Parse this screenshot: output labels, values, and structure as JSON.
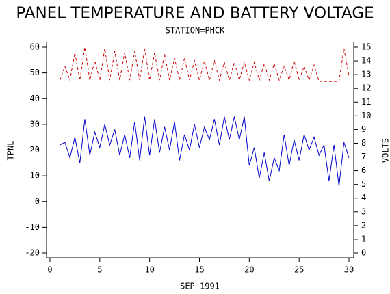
{
  "chart_data": {
    "type": "line",
    "title": "PANEL TEMPERATURE AND BATTERY VOLTAGE",
    "subtitle": "STATION=PHCK",
    "x_label": "SEP 1991",
    "y_label": "TPNL",
    "y2_label": "VOLTS",
    "xlim": [
      0,
      30
    ],
    "xticks": [
      0,
      5,
      10,
      15,
      20,
      25,
      30
    ],
    "ylim": [
      -20,
      60
    ],
    "yticks": [
      -20,
      -10,
      0,
      10,
      20,
      30,
      40,
      50,
      60
    ],
    "y2lim": [
      0,
      15
    ],
    "y2ticks": [
      0,
      1,
      2,
      3,
      4,
      5,
      6,
      7,
      8,
      9,
      10,
      11,
      12,
      13,
      14,
      15
    ],
    "x": [
      1,
      1.5,
      2,
      2.5,
      3,
      3.5,
      4,
      4.5,
      5,
      5.5,
      6,
      6.5,
      7,
      7.5,
      8,
      8.5,
      9,
      9.5,
      10,
      10.5,
      11,
      11.5,
      12,
      12.5,
      13,
      13.5,
      14,
      14.5,
      15,
      15.5,
      16,
      16.5,
      17,
      17.5,
      18,
      18.5,
      19,
      19.5,
      20,
      20.5,
      21,
      21.5,
      22,
      22.5,
      23,
      23.5,
      24,
      24.5,
      25,
      25.5,
      26,
      26.5,
      27,
      27.5,
      28,
      28.5,
      29,
      29.5,
      30
    ],
    "series": [
      {
        "name": "TPNL",
        "color": "#0000cc",
        "dash": false,
        "values": [
          22,
          23,
          17,
          25,
          15,
          32,
          18,
          27,
          21,
          30,
          22,
          28,
          18,
          26,
          17,
          31,
          16,
          33,
          18,
          32,
          19,
          29,
          20,
          31,
          16,
          26,
          20,
          30,
          21,
          29,
          24,
          32,
          22,
          33,
          24,
          33,
          24,
          33,
          14,
          21,
          9,
          19,
          8,
          17,
          12,
          26,
          14,
          24,
          16,
          26,
          20,
          25,
          18,
          22,
          8,
          22,
          6,
          23,
          17
        ]
      },
      {
        "name": "VOLTS",
        "color": "#cc0000",
        "dash": true,
        "axis": "y2",
        "values": [
          12.6,
          13.6,
          12.6,
          14.6,
          12.6,
          15.0,
          12.6,
          14.0,
          12.6,
          14.9,
          12.6,
          14.7,
          12.6,
          14.6,
          12.6,
          14.7,
          12.6,
          14.9,
          12.6,
          14.6,
          12.6,
          14.5,
          12.6,
          14.2,
          12.6,
          14.2,
          12.6,
          14.0,
          12.6,
          14.0,
          12.6,
          14.0,
          12.6,
          13.9,
          12.6,
          13.9,
          12.6,
          13.9,
          12.6,
          13.9,
          12.6,
          13.8,
          12.6,
          13.8,
          12.6,
          13.6,
          12.6,
          14.0,
          12.6,
          13.6,
          12.6,
          13.7,
          12.5,
          12.5,
          12.5,
          12.5,
          12.5,
          14.9,
          12.9
        ]
      }
    ]
  }
}
